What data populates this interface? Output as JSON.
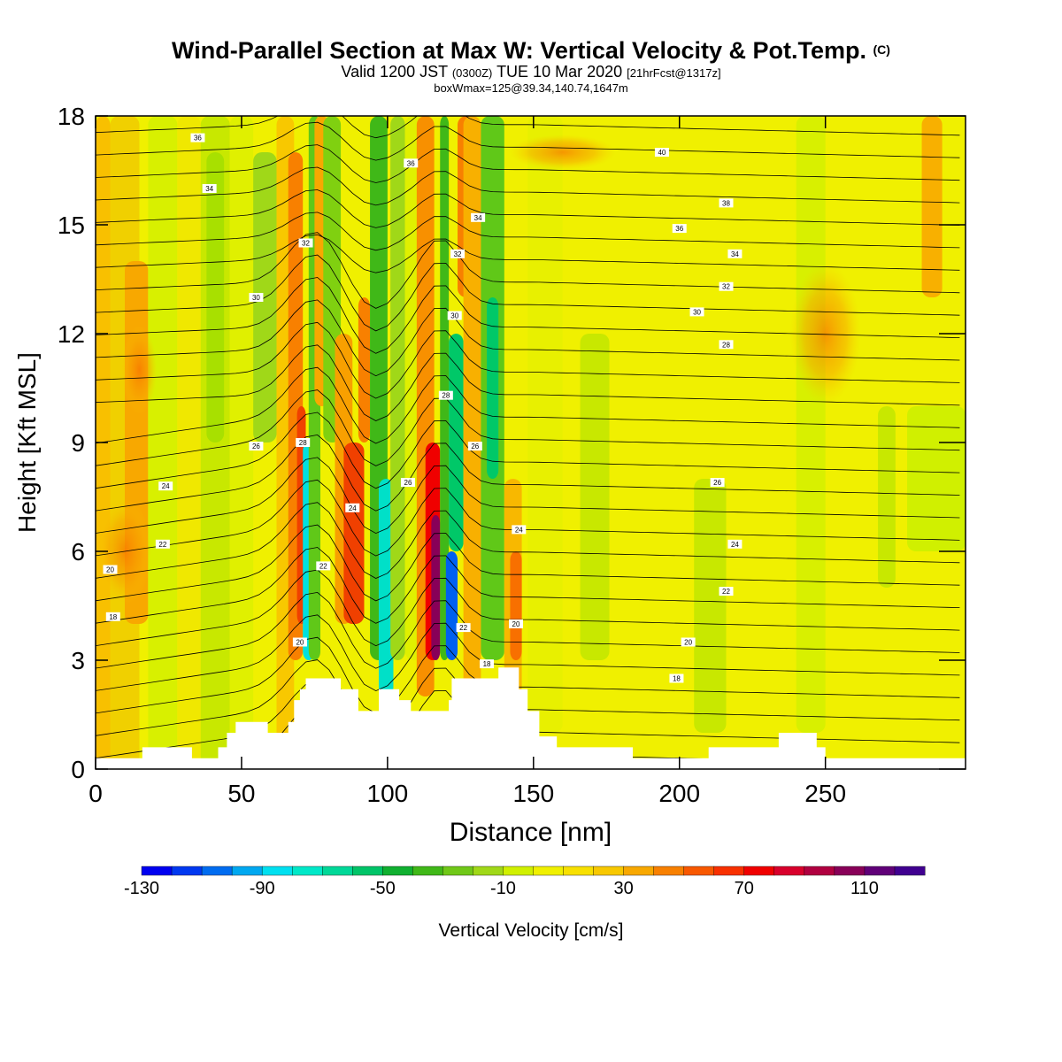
{
  "title": {
    "main": "Wind-Parallel Section at Max W: Vertical Velocity & Pot.Temp.",
    "mark": "(C)",
    "valid_a": "Valid 1200 JST",
    "valid_b": "(0300Z)",
    "valid_c": "TUE 10 Mar 2020",
    "valid_d": "[21hrFcst@1317z]",
    "box": "boxWmax=125@39.34,140.74,1647m"
  },
  "chart_data": {
    "type": "heatmap",
    "xlabel": "Distance [nm]",
    "ylabel": "Height [Kft MSL]",
    "xlim": [
      0,
      298
    ],
    "ylim": [
      0,
      18
    ],
    "x_ticks": [
      0,
      50,
      100,
      150,
      200,
      250
    ],
    "y_ticks": [
      0,
      3,
      6,
      9,
      12,
      15,
      18
    ],
    "colorbar": {
      "label": "Vertical Velocity [cm/s]",
      "tick_values": [
        -130,
        -90,
        -50,
        -10,
        30,
        70,
        110
      ],
      "colors": [
        "#0000f0",
        "#0038f0",
        "#006cf0",
        "#00a8f0",
        "#00e0f0",
        "#00e8c8",
        "#00d898",
        "#00c468",
        "#10b030",
        "#40b818",
        "#70c818",
        "#a0d818",
        "#d0f000",
        "#f0f000",
        "#f8e000",
        "#f8c800",
        "#f8a800",
        "#f88000",
        "#f85800",
        "#f83000",
        "#f00000",
        "#d8002c",
        "#b00040",
        "#880058",
        "#600078",
        "#400090"
      ]
    },
    "contour_labels": [
      {
        "x": 35,
        "y": 17.4,
        "text": "36"
      },
      {
        "x": 39,
        "y": 16.0,
        "text": "34"
      },
      {
        "x": 72,
        "y": 14.5,
        "text": "32"
      },
      {
        "x": 55,
        "y": 13.0,
        "text": "30"
      },
      {
        "x": 108,
        "y": 16.7,
        "text": "36"
      },
      {
        "x": 131,
        "y": 15.2,
        "text": "34"
      },
      {
        "x": 124,
        "y": 14.2,
        "text": "32"
      },
      {
        "x": 123,
        "y": 12.5,
        "text": "30"
      },
      {
        "x": 120,
        "y": 10.3,
        "text": "28"
      },
      {
        "x": 130,
        "y": 8.9,
        "text": "26"
      },
      {
        "x": 194,
        "y": 17.0,
        "text": "40"
      },
      {
        "x": 216,
        "y": 15.6,
        "text": "38"
      },
      {
        "x": 200,
        "y": 14.9,
        "text": "36"
      },
      {
        "x": 219,
        "y": 14.2,
        "text": "34"
      },
      {
        "x": 216,
        "y": 13.3,
        "text": "32"
      },
      {
        "x": 206,
        "y": 12.6,
        "text": "30"
      },
      {
        "x": 216,
        "y": 11.7,
        "text": "28"
      },
      {
        "x": 71,
        "y": 9.0,
        "text": "28"
      },
      {
        "x": 55,
        "y": 8.9,
        "text": "26"
      },
      {
        "x": 107,
        "y": 7.9,
        "text": "26"
      },
      {
        "x": 24,
        "y": 7.8,
        "text": "24"
      },
      {
        "x": 88,
        "y": 7.2,
        "text": "24"
      },
      {
        "x": 23,
        "y": 6.2,
        "text": "22"
      },
      {
        "x": 78,
        "y": 5.6,
        "text": "22"
      },
      {
        "x": 5,
        "y": 5.5,
        "text": "20"
      },
      {
        "x": 6,
        "y": 4.2,
        "text": "18"
      },
      {
        "x": 70,
        "y": 3.5,
        "text": "20"
      },
      {
        "x": 126,
        "y": 3.9,
        "text": "22"
      },
      {
        "x": 144,
        "y": 4.0,
        "text": "20"
      },
      {
        "x": 134,
        "y": 2.9,
        "text": "18"
      },
      {
        "x": 145,
        "y": 6.6,
        "text": "24"
      },
      {
        "x": 213,
        "y": 7.9,
        "text": "26"
      },
      {
        "x": 219,
        "y": 6.2,
        "text": "24"
      },
      {
        "x": 216,
        "y": 4.9,
        "text": "22"
      },
      {
        "x": 203,
        "y": 3.5,
        "text": "20"
      },
      {
        "x": 199,
        "y": 2.5,
        "text": "18"
      }
    ]
  }
}
